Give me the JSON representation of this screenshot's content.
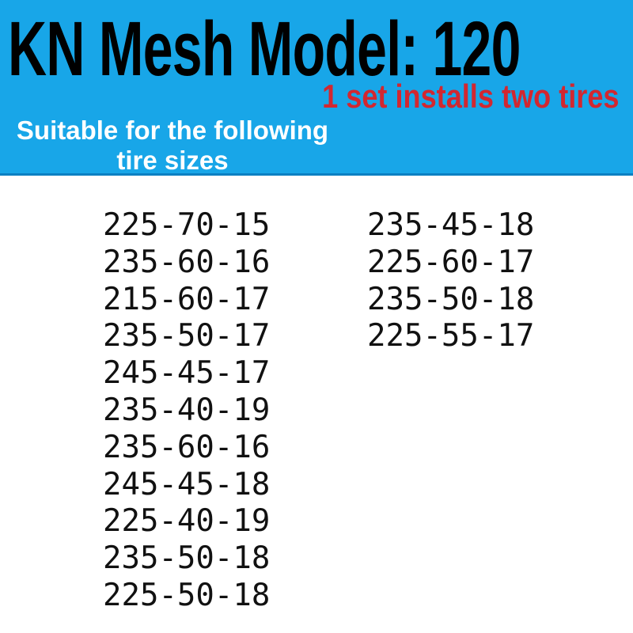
{
  "banner": {
    "title": "KN Mesh Model: 120",
    "installs_note": "1 set installs two tires",
    "subtitle_line1": "Suitable for the following",
    "subtitle_line2": "tire sizes",
    "background_color": "#18a6e8",
    "bottom_border_color": "#0c80c2",
    "title_color": "#000000",
    "note_color": "#d22730",
    "subtitle_color": "#ffffff"
  },
  "tire_sizes": {
    "text_color": "#111111",
    "left_column": [
      "225-70-15",
      "235-60-16",
      "215-60-17",
      "235-50-17",
      "245-45-17",
      "235-40-19",
      "235-60-16",
      "245-45-18",
      "225-40-19",
      "235-50-18",
      "225-50-18"
    ],
    "right_column": [
      "235-45-18",
      "225-60-17",
      "235-50-18",
      "225-55-17"
    ]
  }
}
